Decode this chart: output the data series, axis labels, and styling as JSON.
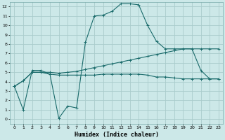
{
  "title": "",
  "xlabel": "Humidex (Indice chaleur)",
  "background_color": "#cce8e8",
  "grid_color": "#aacccc",
  "line_color": "#1a6b6b",
  "xlim": [
    -0.5,
    23.5
  ],
  "ylim": [
    -0.5,
    12.5
  ],
  "xticks": [
    0,
    1,
    2,
    3,
    4,
    5,
    6,
    7,
    8,
    9,
    10,
    11,
    12,
    13,
    14,
    15,
    16,
    17,
    18,
    19,
    20,
    21,
    22,
    23
  ],
  "yticks": [
    0,
    1,
    2,
    3,
    4,
    5,
    6,
    7,
    8,
    9,
    10,
    11,
    12
  ],
  "line1_x": [
    0,
    1,
    2,
    3,
    4,
    5,
    6,
    7,
    8,
    9,
    10,
    11,
    12,
    13,
    14,
    15,
    16,
    17,
    18,
    19,
    20,
    21,
    22,
    23
  ],
  "line1_y": [
    3.5,
    1.0,
    5.2,
    5.2,
    4.8,
    0.1,
    1.4,
    1.2,
    8.2,
    11.0,
    11.1,
    11.5,
    12.3,
    12.3,
    12.2,
    10.0,
    8.3,
    7.5,
    7.5,
    7.5,
    7.5,
    5.2,
    4.3,
    4.3
  ],
  "line2_x": [
    0,
    1,
    2,
    3,
    4,
    5,
    6,
    7,
    8,
    9,
    10,
    11,
    12,
    13,
    14,
    15,
    16,
    17,
    18,
    19,
    20,
    21,
    22,
    23
  ],
  "line2_y": [
    3.5,
    4.1,
    5.0,
    5.0,
    5.0,
    4.9,
    5.0,
    5.1,
    5.3,
    5.5,
    5.7,
    5.9,
    6.1,
    6.3,
    6.5,
    6.7,
    6.9,
    7.1,
    7.3,
    7.5,
    7.5,
    7.5,
    7.5,
    7.5
  ],
  "line3_x": [
    0,
    1,
    2,
    3,
    4,
    5,
    6,
    7,
    8,
    9,
    10,
    11,
    12,
    13,
    14,
    15,
    16,
    17,
    18,
    19,
    20,
    21,
    22,
    23
  ],
  "line3_y": [
    3.5,
    4.1,
    5.0,
    5.0,
    4.8,
    4.7,
    4.7,
    4.7,
    4.7,
    4.7,
    4.8,
    4.8,
    4.8,
    4.8,
    4.8,
    4.7,
    4.5,
    4.5,
    4.4,
    4.3,
    4.3,
    4.3,
    4.3,
    4.3
  ]
}
